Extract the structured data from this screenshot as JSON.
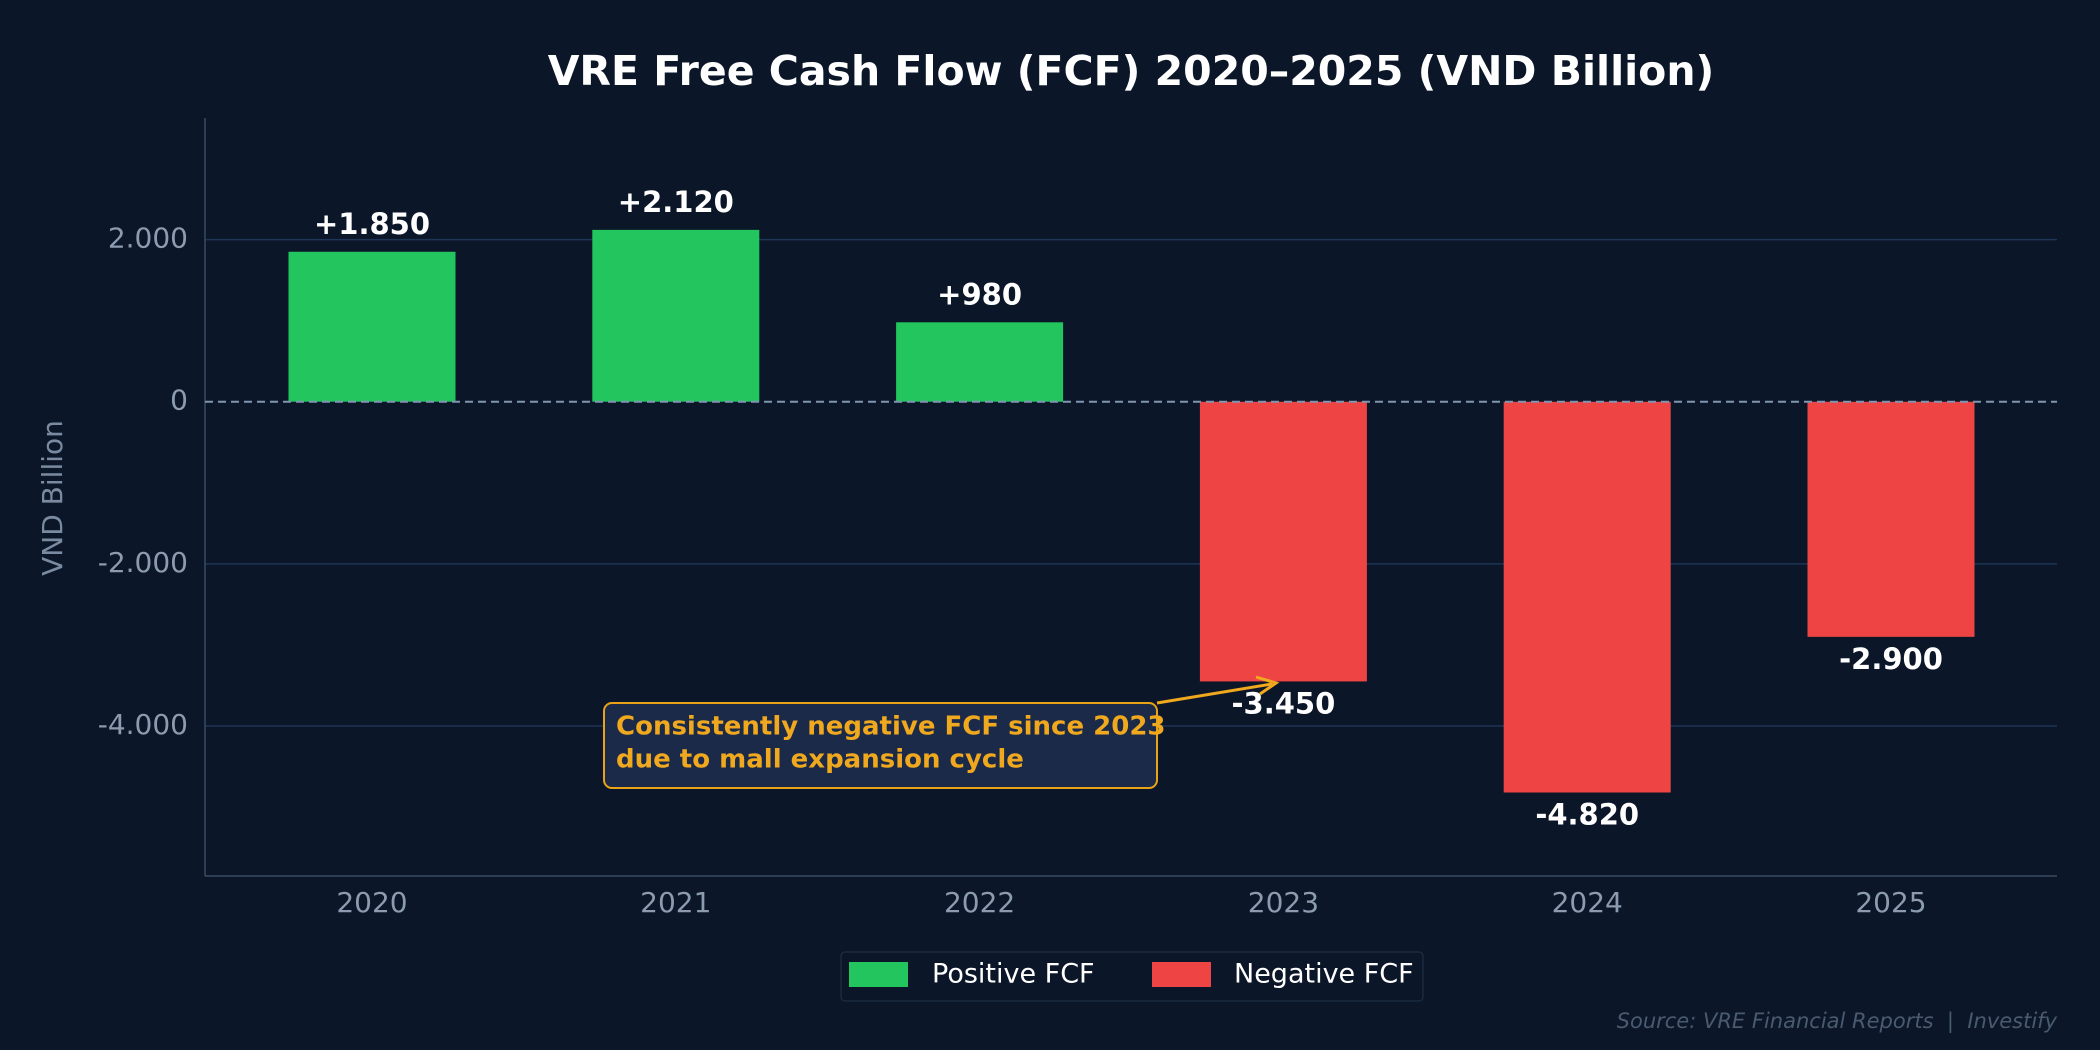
{
  "chart_data": {
    "type": "bar",
    "title": "VRE Free Cash Flow (FCF) 2020–2025 (VND Billion)",
    "xlabel": "",
    "ylabel": "VND Billion",
    "categories": [
      "2020",
      "2021",
      "2022",
      "2023",
      "2024",
      "2025"
    ],
    "values": [
      1850,
      2120,
      980,
      -3450,
      -4820,
      -2900
    ],
    "data_labels": [
      "+1.850",
      "+2.120",
      "+980",
      "-3.450",
      "-4.820",
      "-2.900"
    ],
    "ylim": [
      -5850,
      3500
    ],
    "yticks": [
      2000,
      0,
      -2000,
      -4000
    ],
    "ytick_labels": [
      "2.000",
      "0",
      "-2.000",
      "-4.000"
    ],
    "grid": "horizontal",
    "zero_line": "dashed",
    "colors": {
      "positive": "#22c55e",
      "negative": "#ef4444",
      "background": "#0b1628",
      "annotation": "#f0a81e"
    },
    "legend": {
      "placement": "bottom-center",
      "entries": [
        {
          "label": "Positive FCF",
          "color": "#22c55e"
        },
        {
          "label": "Negative FCF",
          "color": "#ef4444"
        }
      ]
    },
    "annotation": {
      "lines": [
        "Consistently negative FCF since 2023",
        "due to mall expansion cycle"
      ],
      "target_category": "2023",
      "target_value": -3450
    },
    "source": "Source: VRE Financial Reports  |  Investify"
  }
}
